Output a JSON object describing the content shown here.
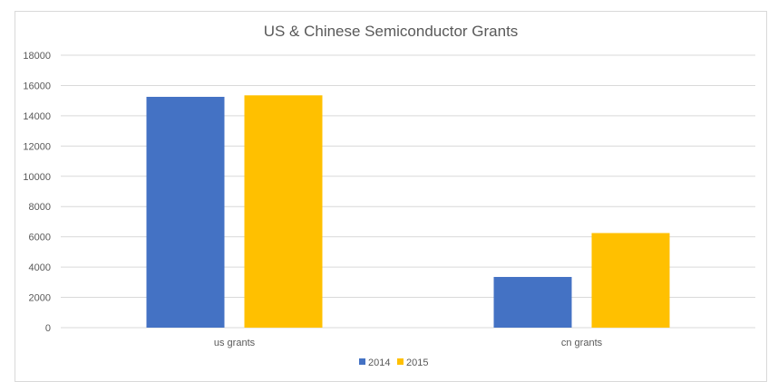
{
  "chart_data": {
    "type": "bar",
    "title": "US & Chinese Semiconductor Grants",
    "categories": [
      "us grants",
      "cn grants"
    ],
    "series": [
      {
        "name": "2014",
        "color": "#4472C4",
        "values": [
          15250,
          3350
        ]
      },
      {
        "name": "2015",
        "color": "#FFC000",
        "values": [
          15350,
          6250
        ]
      }
    ],
    "ylim": [
      0,
      18000
    ],
    "yticks": [
      0,
      2000,
      4000,
      6000,
      8000,
      10000,
      12000,
      14000,
      16000,
      18000
    ],
    "grid": true,
    "legend_position": "bottom"
  }
}
